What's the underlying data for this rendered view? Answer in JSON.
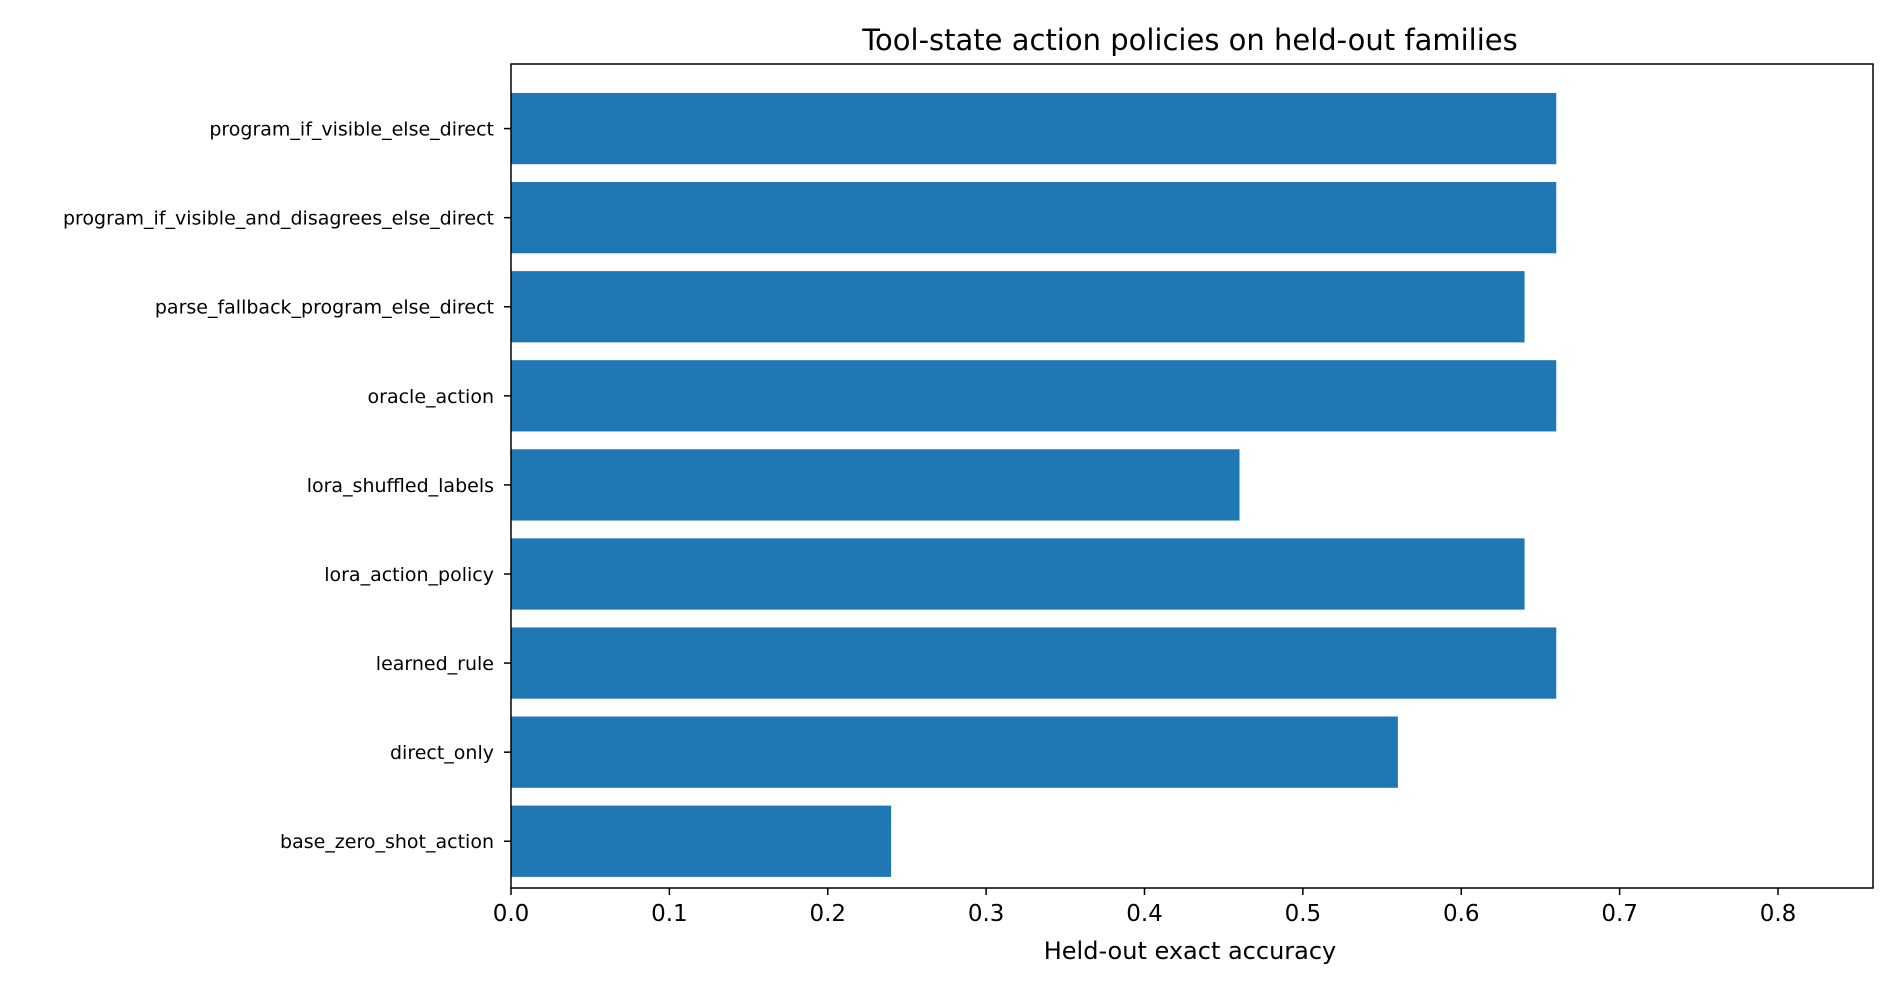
{
  "chart_data": {
    "type": "bar",
    "orientation": "horizontal",
    "title": "Tool-state action policies on held-out families",
    "xlabel": "Held-out exact accuracy",
    "ylabel": "",
    "xlim": [
      0,
      0.86
    ],
    "xticks": [
      "0.0",
      "0.1",
      "0.2",
      "0.3",
      "0.4",
      "0.5",
      "0.6",
      "0.7",
      "0.8"
    ],
    "bar_color": "#1f77b4",
    "grid": false,
    "categories": [
      "program_if_visible_else_direct",
      "program_if_visible_and_disagrees_else_direct",
      "parse_fallback_program_else_direct",
      "oracle_action",
      "lora_shuffled_labels",
      "lora_action_policy",
      "learned_rule",
      "direct_only",
      "base_zero_shot_action"
    ],
    "values": [
      0.66,
      0.66,
      0.64,
      0.66,
      0.46,
      0.64,
      0.66,
      0.56,
      0.24
    ]
  }
}
